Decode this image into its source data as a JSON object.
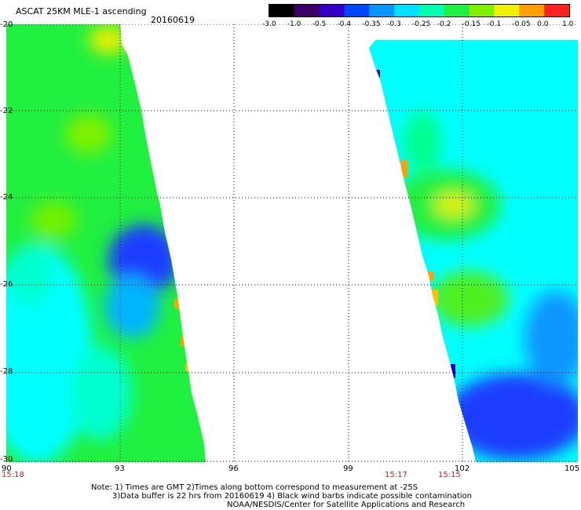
{
  "header": {
    "title": "ASCAT 25KM MLE-1 ascending",
    "date": "20160619"
  },
  "colorbar": {
    "labels": [
      "-3.0",
      "-1.0",
      "-0.5",
      "-0.4",
      "-0.35",
      "-0.3",
      "-0.25",
      "-0.2",
      "-0.15",
      "-0.1",
      "-0.05",
      "0.0",
      "1.0"
    ],
    "colors": [
      "#000000",
      "#3a0066",
      "#3200c8",
      "#0046ff",
      "#0a96ff",
      "#00e0ff",
      "#00ffb0",
      "#20f040",
      "#80f000",
      "#f0f000",
      "#ffa000",
      "#ff2020"
    ]
  },
  "axes": {
    "x_ticks": [
      "90",
      "93",
      "96",
      "99",
      "102",
      "105"
    ],
    "y_ticks": [
      "-20",
      "-22",
      "-24",
      "-26",
      "-28",
      "-30"
    ],
    "x_range": [
      90,
      105
    ],
    "y_range": [
      -30,
      -20
    ]
  },
  "times": {
    "left": "15:18",
    "mid": "15:17",
    "right": "15:15"
  },
  "notes": {
    "line1": "Note: 1) Times are GMT 2)Times along bottom correspond to measurement at -25S",
    "line2": "3)Data buffer is 22 hrs from 20160619 4) Black wind barbs indicate possible contamination",
    "line3": "NOAA/NESDIS/Center for Satellite Applications and Research"
  },
  "legend_colors": {
    "blue": "#1a3cff",
    "cyan": "#00ffff",
    "green": "#20f020",
    "yellow": "#f0f000",
    "orange": "#ffa000"
  }
}
